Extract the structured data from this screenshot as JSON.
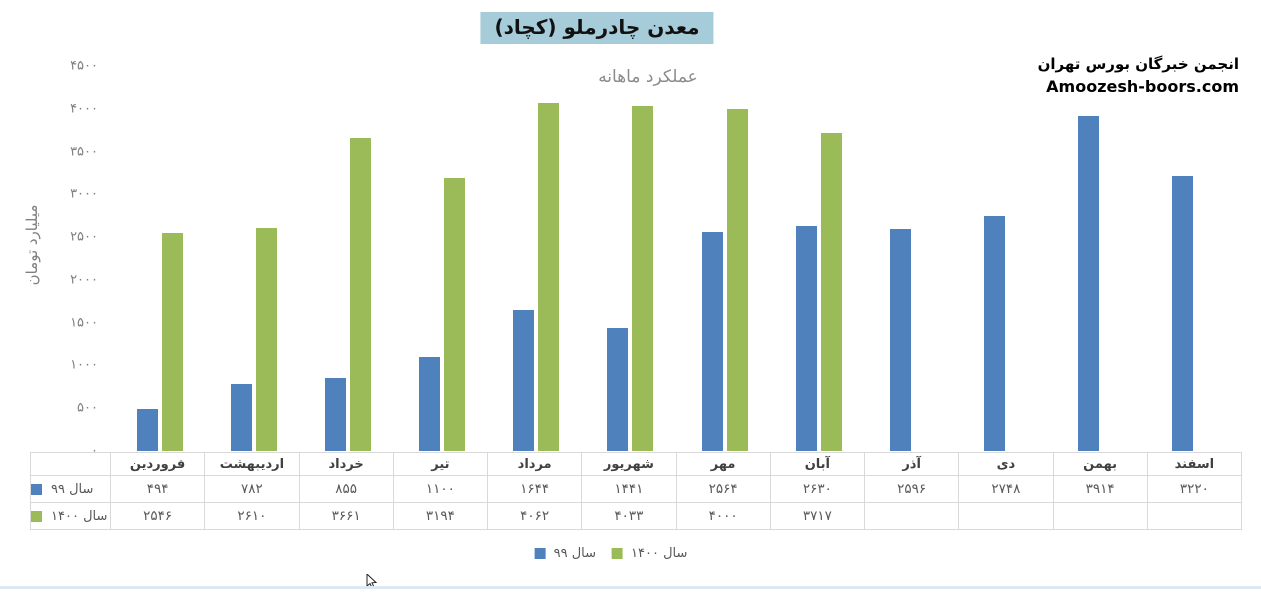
{
  "title": "معدن چادرملو (کچاد)",
  "subtitle": "عملکرد ماهانه",
  "brand": {
    "line1": "انجمن خبرگان بورس تهران",
    "line2": "Amoozesh-boors.com"
  },
  "y_axis": {
    "title": "میلیارد تومان",
    "ticks": [
      {
        "label": "۴۵۰۰",
        "value": 4500
      },
      {
        "label": "۴۰۰۰",
        "value": 4000
      },
      {
        "label": "۳۵۰۰",
        "value": 3500
      },
      {
        "label": "۳۰۰۰",
        "value": 3000
      },
      {
        "label": "۲۵۰۰",
        "value": 2500
      },
      {
        "label": "۲۰۰۰",
        "value": 2000
      },
      {
        "label": "۱۵۰۰",
        "value": 1500
      },
      {
        "label": "۱۰۰۰",
        "value": 1000
      },
      {
        "label": "۵۰۰",
        "value": 500
      },
      {
        "label": "۰",
        "value": 0
      }
    ]
  },
  "legend": [
    {
      "label": "سال ۹۹",
      "color": "#4f81bd"
    },
    {
      "label": "سال ۱۴۰۰",
      "color": "#9bbb59"
    }
  ],
  "colors": {
    "series_99": "#4f81bd",
    "series_1400": "#9bbb59",
    "title_highlight": "#a6cbd9",
    "table_border": "#d9d9d9"
  },
  "chart_data": {
    "type": "bar",
    "title": "معدن چادرملو (کچاد)",
    "subtitle": "عملکرد ماهانه",
    "xlabel": "",
    "ylabel": "میلیارد تومان",
    "ylim": [
      0,
      4500
    ],
    "grid": false,
    "legend_position": "bottom",
    "categories": [
      "فروردین",
      "اردیبهشت",
      "خرداد",
      "تیر",
      "مرداد",
      "شهریور",
      "مهر",
      "آبان",
      "آذر",
      "دی",
      "بهمن",
      "اسفند"
    ],
    "series": [
      {
        "name": "سال ۹۹",
        "color": "#4f81bd",
        "values": [
          494,
          782,
          855,
          1100,
          1644,
          1441,
          2564,
          2630,
          2596,
          2748,
          3914,
          3220
        ],
        "display": [
          "۴۹۴",
          "۷۸۲",
          "۸۵۵",
          "۱۱۰۰",
          "۱۶۴۴",
          "۱۴۴۱",
          "۲۵۶۴",
          "۲۶۳۰",
          "۲۵۹۶",
          "۲۷۴۸",
          "۳۹۱۴",
          "۳۲۲۰"
        ]
      },
      {
        "name": "سال ۱۴۰۰",
        "color": "#9bbb59",
        "values": [
          2546,
          2610,
          3661,
          3194,
          4062,
          4033,
          4000,
          3717,
          null,
          null,
          null,
          null
        ],
        "display": [
          "۲۵۴۶",
          "۲۶۱۰",
          "۳۶۶۱",
          "۳۱۹۴",
          "۴۰۶۲",
          "۴۰۳۳",
          "۴۰۰۰",
          "۳۷۱۷",
          "",
          "",
          "",
          ""
        ]
      }
    ]
  }
}
